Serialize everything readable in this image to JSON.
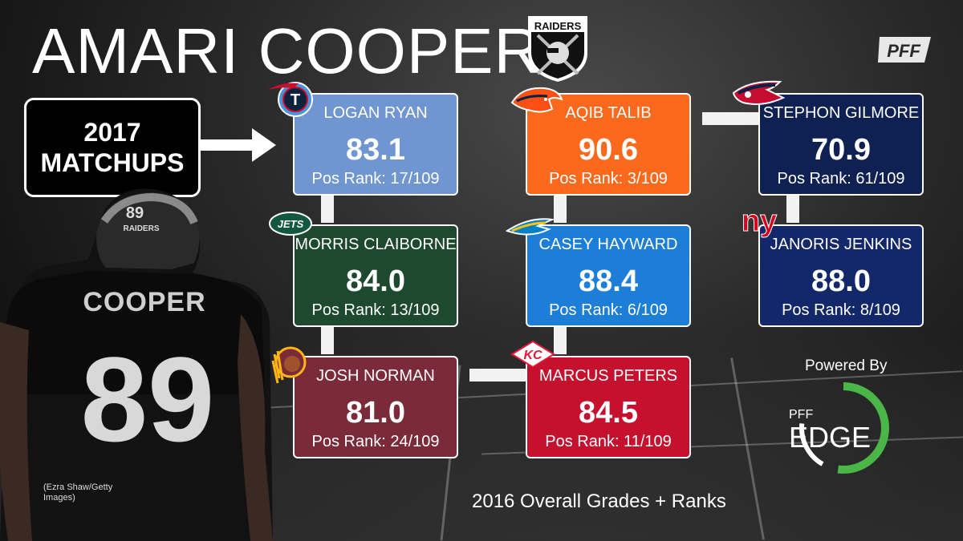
{
  "title": "AMARI COOPER",
  "matchups": {
    "line1": "2017",
    "line2": "MATCHUPS"
  },
  "cards": [
    {
      "name": "LOGAN RYAN",
      "grade": "83.1",
      "rank": "Pos Rank: 17/109",
      "color": "#6f96d1",
      "team_icon": "titans-icon"
    },
    {
      "name": "MORRIS CLAIBORNE",
      "grade": "84.0",
      "rank": "Pos Rank: 13/109",
      "color": "#1d4a2e",
      "team_icon": "jets-icon"
    },
    {
      "name": "JOSH NORMAN",
      "grade": "81.0",
      "rank": "Pos Rank: 24/109",
      "color": "#7a2a38",
      "team_icon": "redskins-icon"
    },
    {
      "name": "AQIB TALIB",
      "grade": "90.6",
      "rank": "Pos Rank: 3/109",
      "color": "#fb6a1c",
      "team_icon": "broncos-icon"
    },
    {
      "name": "CASEY HAYWARD",
      "grade": "88.4",
      "rank": "Pos Rank: 6/109",
      "color": "#1d7ed8",
      "team_icon": "chargers-icon"
    },
    {
      "name": "MARCUS PETERS",
      "grade": "84.5",
      "rank": "Pos Rank: 11/109",
      "color": "#c5112e",
      "team_icon": "chiefs-icon"
    },
    {
      "name": "STEPHON GILMORE",
      "grade": "70.9",
      "rank": "Pos Rank: 61/109",
      "color": "#0f2152",
      "team_icon": "patriots-icon"
    },
    {
      "name": "JANORIS JENKINS",
      "grade": "88.0",
      "rank": "Pos Rank: 8/109",
      "color": "#13286a",
      "team_icon": "giants-icon"
    }
  ],
  "team_logos": {
    "raiders": "RAIDERS",
    "jets": "JETS",
    "giants": "ny"
  },
  "player": {
    "jersey_name": "COOPER",
    "number": "89",
    "helmet_text": "RAIDERS"
  },
  "credit": {
    "line1": "(Ezra  Shaw/Getty",
    "line2": "Images)"
  },
  "footer": "2016 Overall Grades + Ranks",
  "powered_by": "Powered By",
  "edge_logo": {
    "top": "PFF",
    "main": "EDGE"
  },
  "pff_logo": "PFF"
}
